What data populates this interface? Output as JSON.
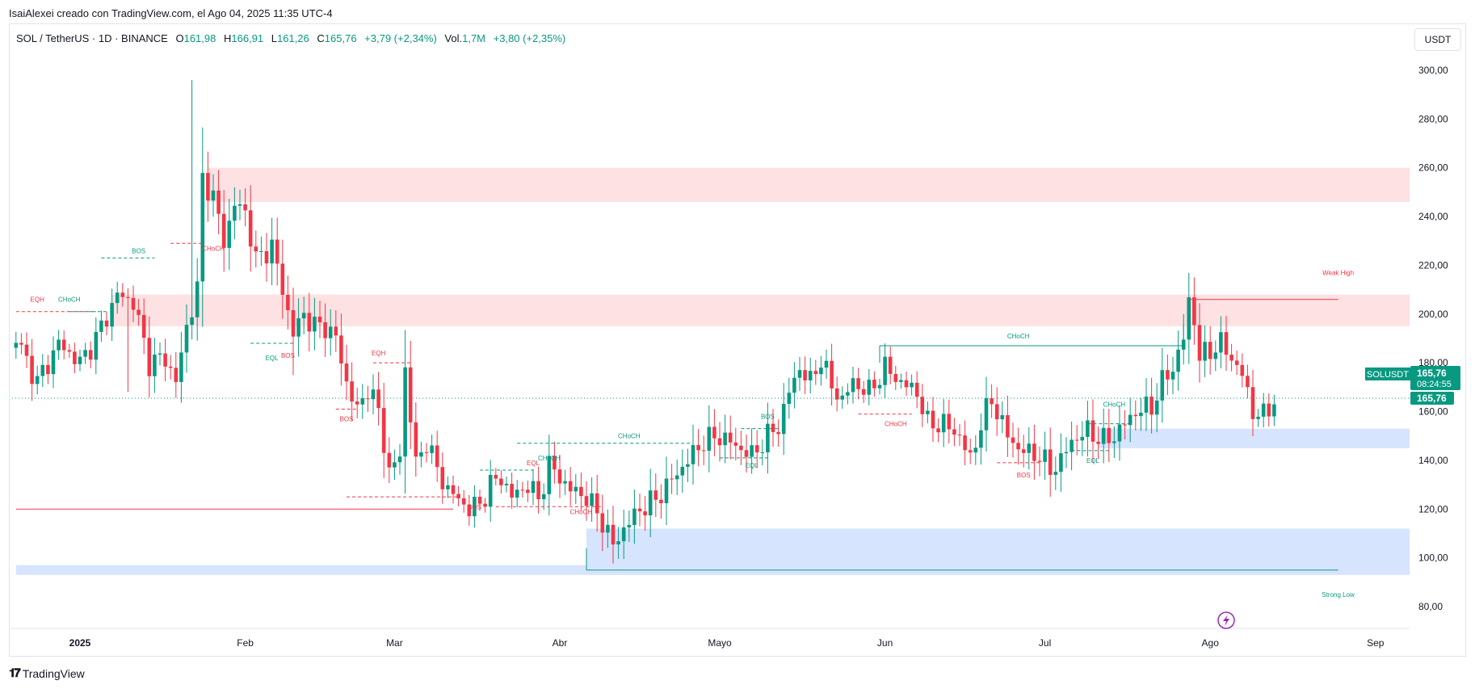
{
  "header": {
    "author_line": "IsaiAlexei creado con TradingView.com, el Ago 04, 2025 11:35 UTC-4"
  },
  "legend": {
    "symbol": "SOL / TetherUS · 1D · BINANCE",
    "o_label": "O",
    "o_value": "161,98",
    "h_label": "H",
    "h_value": "166,91",
    "l_label": "L",
    "l_value": "161,26",
    "c_label": "C",
    "c_value": "165,76",
    "change": "+3,79 (+2,34%)",
    "vol_label": "Vol.",
    "vol_value": "1,7M",
    "vol_change": "+3,80 (+2,35%)"
  },
  "currency_button": "USDT",
  "footer": {
    "brand": "TradingView"
  },
  "colors": {
    "up": "#089981",
    "down": "#f23645",
    "supply_zone": "#fde1e3",
    "demand_zone": "#d6e4fd",
    "price_tag": "#089981"
  },
  "chart_data": {
    "type": "candlestick",
    "title": "SOL / TetherUS · 1D · BINANCE",
    "ylim": [
      70,
      310
    ],
    "y_ticks": [
      "300,00",
      "280,00",
      "260,00",
      "240,00",
      "220,00",
      "200,00",
      "180,00",
      "160,00",
      "140,00",
      "120,00",
      "100,00",
      "80,00"
    ],
    "y_tick_values": [
      300,
      280,
      260,
      240,
      220,
      200,
      180,
      160,
      140,
      120,
      100,
      80
    ],
    "x_ticks": [
      "2025",
      "Feb",
      "Mar",
      "Abr",
      "Mayo",
      "Jun",
      "Jul",
      "Ago",
      "Sep"
    ],
    "x_tick_days": [
      0,
      31,
      59,
      90,
      120,
      151,
      181,
      212,
      243
    ],
    "current_price": 165.76,
    "price_tags": {
      "symbol": "SOLUSDT",
      "price": "165,76",
      "countdown": "08:24:55",
      "price2": "165,76"
    },
    "zones": [
      {
        "kind": "supply",
        "from_day": 24,
        "to_day": 250,
        "low": 246,
        "high": 260
      },
      {
        "kind": "supply",
        "from_day": 6,
        "to_day": 250,
        "low": 195,
        "high": 208
      },
      {
        "kind": "demand",
        "from_day": 191,
        "to_day": 250,
        "low": 145,
        "high": 153
      },
      {
        "kind": "demand",
        "from_day": 95,
        "to_day": 250,
        "low": 95,
        "high": 112
      },
      {
        "kind": "demand",
        "from_day": -12,
        "to_day": 250,
        "low": 93,
        "high": 97
      }
    ],
    "structure_labels": [
      {
        "text": "EQH",
        "day": -8,
        "price": 205,
        "color": "down"
      },
      {
        "text": "CHoCH",
        "day": -2,
        "price": 205,
        "color": "up"
      },
      {
        "text": "BOS",
        "day": 11,
        "price": 225,
        "color": "up"
      },
      {
        "text": "CHoCH",
        "day": 25,
        "price": 226,
        "color": "down"
      },
      {
        "text": "EQL",
        "day": 36,
        "price": 181,
        "color": "up"
      },
      {
        "text": "BOS",
        "day": 39,
        "price": 182,
        "color": "down"
      },
      {
        "text": "EQH",
        "day": 56,
        "price": 183,
        "color": "down"
      },
      {
        "text": "BOS",
        "day": 50,
        "price": 156,
        "color": "down"
      },
      {
        "text": "BOS",
        "day": 74,
        "price": 120,
        "color": "down"
      },
      {
        "text": "EQL",
        "day": 85,
        "price": 138,
        "color": "down"
      },
      {
        "text": "CHoCH",
        "day": 88,
        "price": 140,
        "color": "up"
      },
      {
        "text": "CHoCH",
        "day": 103,
        "price": 149,
        "color": "up"
      },
      {
        "text": "CHoCH",
        "day": 94,
        "price": 118,
        "color": "down"
      },
      {
        "text": "BOS",
        "day": 129,
        "price": 157,
        "color": "up"
      },
      {
        "text": "EQL",
        "day": 126,
        "price": 137,
        "color": "up"
      },
      {
        "text": "CHoCH",
        "day": 176,
        "price": 190,
        "color": "up"
      },
      {
        "text": "CHoCH",
        "day": 153,
        "price": 154,
        "color": "down"
      },
      {
        "text": "BOS",
        "day": 177,
        "price": 133,
        "color": "down"
      },
      {
        "text": "EQL",
        "day": 190,
        "price": 139,
        "color": "up"
      },
      {
        "text": "CHoCH",
        "day": 194,
        "price": 162,
        "color": "up"
      },
      {
        "text": "Weak High",
        "day": 236,
        "price": 216,
        "color": "down"
      },
      {
        "text": "Strong Low",
        "day": 236,
        "price": 84,
        "color": "up"
      }
    ]
  }
}
